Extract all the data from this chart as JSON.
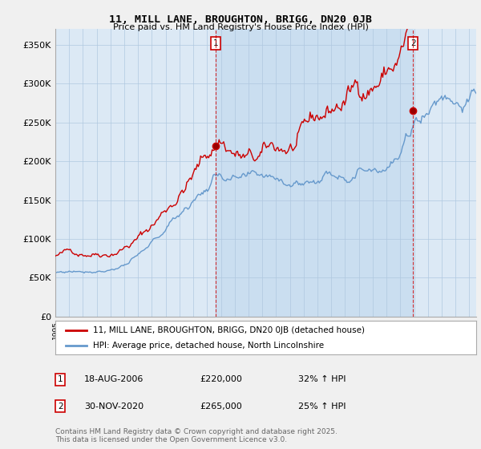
{
  "title": "11, MILL LANE, BROUGHTON, BRIGG, DN20 0JB",
  "subtitle": "Price paid vs. HM Land Registry's House Price Index (HPI)",
  "ylabel_ticks": [
    "£0",
    "£50K",
    "£100K",
    "£150K",
    "£200K",
    "£250K",
    "£300K",
    "£350K"
  ],
  "ylim": [
    0,
    370000
  ],
  "xlim_start": 1995.0,
  "xlim_end": 2025.5,
  "red_color": "#cc0000",
  "blue_color": "#6699cc",
  "marker1_date": 2006.625,
  "marker1_price": 220000,
  "marker1_label": "1",
  "marker2_date": 2020.917,
  "marker2_price": 265000,
  "marker2_label": "2",
  "legend_label_red": "11, MILL LANE, BROUGHTON, BRIGG, DN20 0JB (detached house)",
  "legend_label_blue": "HPI: Average price, detached house, North Lincolnshire",
  "annotation1_date": "18-AUG-2006",
  "annotation1_price": "£220,000",
  "annotation1_hpi": "32% ↑ HPI",
  "annotation2_date": "30-NOV-2020",
  "annotation2_price": "£265,000",
  "annotation2_hpi": "25% ↑ HPI",
  "footer": "Contains HM Land Registry data © Crown copyright and database right 2025.\nThis data is licensed under the Open Government Licence v3.0.",
  "bg_color": "#f0f0f0",
  "plot_bg_color": "#dce9f5",
  "shading_color": "#c8ddf0",
  "grid_color": "#b0c8e0"
}
